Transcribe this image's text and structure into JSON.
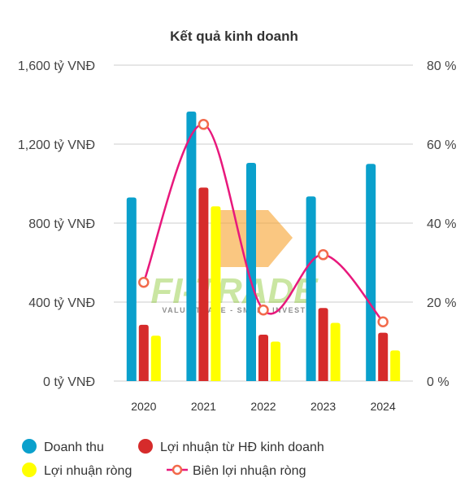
{
  "chart_data": {
    "type": "bar",
    "title": "Kết quả kinh doanh",
    "categories": [
      "2020",
      "2021",
      "2022",
      "2023",
      "2024"
    ],
    "series": [
      {
        "name": "Doanh thu",
        "type": "bar",
        "axis": "left",
        "color": "#0aa0cc",
        "values": [
          930,
          1365,
          1105,
          935,
          1100
        ]
      },
      {
        "name": "Lợi nhuận từ HĐ kinh doanh",
        "type": "bar",
        "axis": "left",
        "color": "#d62b2b",
        "values": [
          285,
          980,
          235,
          370,
          245
        ]
      },
      {
        "name": "Lợi nhuận ròng",
        "type": "bar",
        "axis": "left",
        "color": "#ffff00",
        "values": [
          230,
          885,
          200,
          295,
          155
        ]
      },
      {
        "name": "Biên lợi nhuận ròng",
        "type": "line",
        "axis": "right",
        "color": "#e8187c",
        "marker_color": "#f26a4b",
        "values": [
          25,
          65,
          18,
          32,
          15
        ]
      }
    ],
    "y_left": {
      "ticks": [
        "0 tỷ VNĐ",
        "400 tỷ VNĐ",
        "800 tỷ VNĐ",
        "1,200 tỷ VNĐ",
        "1,600 tỷ VNĐ"
      ],
      "range": [
        0,
        1600
      ]
    },
    "y_right": {
      "ticks": [
        "0 %",
        "20 %",
        "40 %",
        "60 %",
        "80 %"
      ],
      "range": [
        0,
        80
      ]
    },
    "grid": true,
    "legend_position": "bottom"
  },
  "watermark": {
    "brand": "FI-TRADE",
    "tagline": "VALUE TRADE - SMART INVEST"
  }
}
